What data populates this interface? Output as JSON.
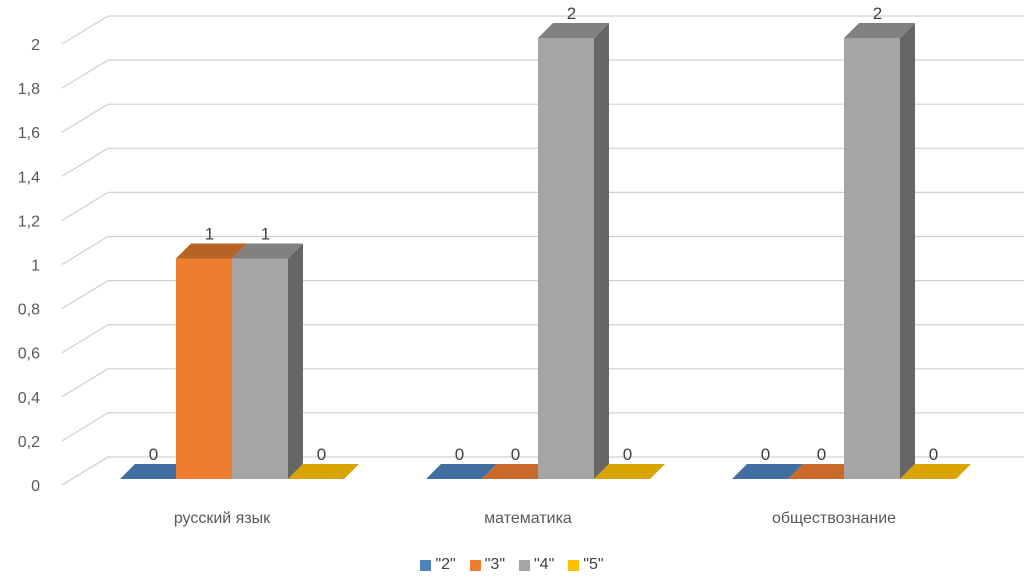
{
  "chart_data": {
    "type": "bar",
    "style": "3d-clustered-column",
    "categories": [
      "русский язык",
      "математика",
      "обществознание"
    ],
    "series": [
      {
        "name": "\"2\"",
        "values": [
          0,
          0,
          0
        ],
        "color": "#4f81bd"
      },
      {
        "name": "\"3\"",
        "values": [
          1,
          0,
          0
        ],
        "color": "#ed7d31"
      },
      {
        "name": "\"4\"",
        "values": [
          1,
          2,
          2
        ],
        "color": "#a5a5a5"
      },
      {
        "name": "\"5\"",
        "values": [
          0,
          0,
          0
        ],
        "color": "#ffc000"
      }
    ],
    "y_ticks": [
      "0",
      "0,2",
      "0,4",
      "0,6",
      "0,8",
      "1",
      "1,2",
      "1,4",
      "1,6",
      "1,8",
      "2"
    ],
    "ylim": [
      0,
      2
    ],
    "grid": true,
    "legend_position": "bottom",
    "data_labels": true
  }
}
